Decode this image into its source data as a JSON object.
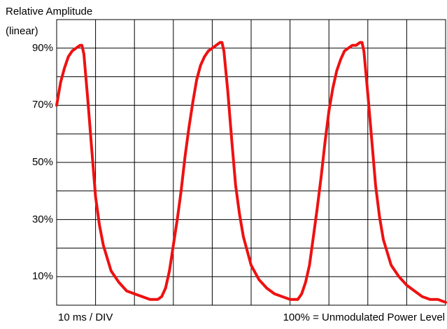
{
  "ylabel_line1": "Relative Amplitude",
  "ylabel_line2": "(linear)",
  "note_left": "10 ms / DIV",
  "note_right": "100% = Unmodulated Power Level",
  "chart_data": {
    "type": "line",
    "title": "",
    "ylabel": "Relative Amplitude (linear)",
    "xlabel": "10 ms / DIV",
    "xlim": [
      0,
      100
    ],
    "ylim": [
      0,
      100
    ],
    "x_divisions": 10,
    "y_divisions": 10,
    "grid": true,
    "ytick_labels": [
      {
        "value": 90,
        "label": "90%"
      },
      {
        "value": 70,
        "label": "70%"
      },
      {
        "value": 50,
        "label": "50%"
      },
      {
        "value": 30,
        "label": "30%"
      },
      {
        "value": 10,
        "label": "10%"
      }
    ],
    "line_color": "#ee1111",
    "series": [
      {
        "x": [
          0,
          1,
          2,
          3,
          4,
          5,
          6,
          6.5,
          7,
          8,
          9,
          10,
          11,
          12,
          14,
          16,
          18,
          20,
          22,
          24,
          26,
          27,
          28,
          29,
          30,
          31,
          32,
          33,
          34,
          35,
          36,
          37,
          38,
          39,
          40,
          41,
          42,
          42.5,
          43,
          44,
          45,
          46,
          47,
          48,
          50,
          52,
          54,
          56,
          58,
          60,
          62,
          63,
          64,
          65,
          66,
          67,
          68,
          69,
          70,
          71,
          72,
          73,
          74,
          75,
          76,
          77,
          78,
          78.5,
          79,
          80,
          81,
          82,
          83,
          84,
          86,
          88,
          90,
          92,
          94,
          96,
          98,
          100
        ],
        "y": [
          70,
          78,
          83,
          87,
          89,
          90,
          91,
          91,
          88,
          72,
          55,
          38,
          28,
          21,
          12,
          8,
          5,
          4,
          3,
          2,
          2,
          3,
          6,
          12,
          21,
          30,
          40,
          52,
          62,
          71,
          79,
          84,
          87,
          89,
          90,
          91,
          92,
          92,
          89,
          75,
          58,
          42,
          32,
          24,
          14,
          9,
          6,
          4,
          3,
          2,
          2,
          4,
          8,
          14,
          24,
          34,
          45,
          57,
          68,
          76,
          82,
          86,
          89,
          90,
          91,
          91,
          92,
          92,
          89,
          74,
          58,
          42,
          31,
          23,
          14,
          10,
          7,
          5,
          3,
          2,
          2,
          1
        ]
      }
    ]
  }
}
